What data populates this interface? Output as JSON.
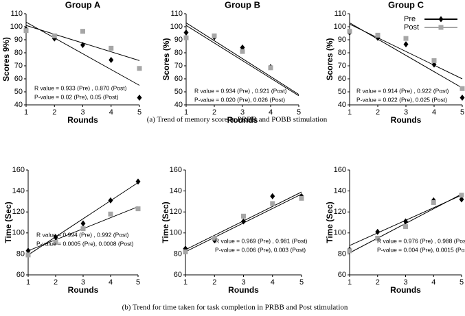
{
  "captions": [
    "(a)   Trend of memory score in PRBB and POBB stimulation",
    "(b)   Trend for time taken for task completion in PRBB and Post stimulation"
  ],
  "chart_data": [
    {
      "type": "scatter",
      "title": "Group A",
      "xlabel": "Rounds",
      "ylabel": "Scores 9%)",
      "x": [
        1,
        2,
        3,
        4,
        5
      ],
      "xlim": [
        1,
        5
      ],
      "xticks": [
        1,
        2,
        3,
        4,
        5
      ],
      "ylim": [
        40,
        110
      ],
      "yticks": [
        40,
        50,
        60,
        70,
        80,
        90,
        100,
        110
      ],
      "annotations": [
        "R value = 0.933 (Pre) , 0.870 (Post)",
        "P-value = 0.02 (Pre), 0.05    (Post)"
      ],
      "series": [
        {
          "name": "Pre",
          "color": "#000000",
          "marker": "diamond",
          "values": [
            98,
            91,
            86,
            74.5,
            45.5
          ],
          "trend": [
            103.5,
            55
          ]
        },
        {
          "name": "Post",
          "color": "#a6a6a6",
          "marker": "square",
          "values": [
            97,
            93,
            96.5,
            83.5,
            68
          ],
          "trend": [
            101,
            74
          ]
        }
      ]
    },
    {
      "type": "scatter",
      "title": "Group B",
      "xlabel": "Rounds",
      "ylabel": "Scores (%)",
      "x": [
        1,
        2,
        3,
        4,
        5
      ],
      "xlim": [
        1,
        5
      ],
      "xticks": [
        1,
        2,
        3,
        4,
        5
      ],
      "ylim": [
        40,
        110
      ],
      "yticks": [
        40,
        50,
        60,
        70,
        80,
        90,
        100,
        110
      ],
      "annotations": [
        "R value = 0.934 (Pre) , 0.921 (Post)",
        "P-value = 0.020 (Pre), 0.026 (Post)"
      ],
      "series": [
        {
          "name": "Pre",
          "color": "#000000",
          "marker": "diamond",
          "values": [
            95.5,
            92,
            84,
            69,
            null
          ],
          "trend": [
            103,
            48
          ]
        },
        {
          "name": "Post",
          "color": "#a6a6a6",
          "marker": "square",
          "values": [
            91.5,
            93,
            81,
            68.5,
            null
          ],
          "trend": [
            101,
            47
          ]
        }
      ]
    },
    {
      "type": "scatter",
      "title": "Group C",
      "xlabel": "Rounds",
      "ylabel": "Scores (%)",
      "legend": "upper right",
      "x": [
        1,
        2,
        3,
        4,
        5
      ],
      "xlim": [
        1,
        5
      ],
      "xticks": [
        1,
        2,
        3,
        4,
        5
      ],
      "ylim": [
        40,
        110
      ],
      "yticks": [
        40,
        50,
        60,
        70,
        80,
        90,
        100,
        110
      ],
      "annotations": [
        "R value = 0.914 (Pre) , 0.922 (Post)",
        "P-value = 0.022 (Pre), 0.025  (Post)"
      ],
      "series": [
        {
          "name": "Pre",
          "color": "#000000",
          "marker": "diamond",
          "values": [
            95.5,
            91.5,
            86.5,
            71,
            45.5
          ],
          "trend": [
            103,
            53
          ]
        },
        {
          "name": "Post",
          "color": "#a6a6a6",
          "marker": "square",
          "values": [
            96.5,
            93.5,
            91,
            74,
            52.5
          ],
          "trend": [
            102,
            60
          ]
        }
      ]
    },
    {
      "type": "scatter",
      "xlabel": "Rounds",
      "ylabel": "Time (Sec)",
      "x": [
        1,
        2,
        3,
        4,
        5
      ],
      "xlim": [
        1,
        5
      ],
      "xticks": [
        1,
        2,
        3,
        4,
        5
      ],
      "ylim": [
        60,
        160
      ],
      "yticks": [
        60,
        80,
        100,
        120,
        140,
        160
      ],
      "annotations": [
        "R value = 0.994 (Pre) , 0.992 (Post)",
        "P-value = 0.0005 (Pre), 0.0008 (Post)"
      ],
      "series": [
        {
          "name": "Pre",
          "color": "#000000",
          "marker": "diamond",
          "values": [
            83,
            96,
            109,
            131,
            149
          ],
          "trend": [
            79,
            148
          ]
        },
        {
          "name": "Post",
          "color": "#a6a6a6",
          "marker": "square",
          "values": [
            79,
            91,
            104,
            118,
            123
          ],
          "trend": [
            83,
            125
          ]
        }
      ]
    },
    {
      "type": "scatter",
      "xlabel": "Rounds",
      "ylabel": "Time (Sec)",
      "x": [
        1,
        2,
        3,
        4,
        5
      ],
      "xlim": [
        1,
        5
      ],
      "xticks": [
        1,
        2,
        3,
        4,
        5
      ],
      "ylim": [
        60,
        160
      ],
      "yticks": [
        60,
        80,
        100,
        120,
        140,
        160
      ],
      "annotations": [
        "R value = 0.969 (Pre) , 0.981 (Post)",
        "P-value = 0.006 (Pre), 0.003    (Post)"
      ],
      "series": [
        {
          "name": "Pre",
          "color": "#000000",
          "marker": "diamond",
          "values": [
            85,
            93,
            111,
            135,
            135
          ],
          "trend": [
            84,
            139
          ]
        },
        {
          "name": "Post",
          "color": "#a6a6a6",
          "marker": "square",
          "values": [
            82,
            95,
            116,
            128,
            133
          ],
          "trend": [
            82,
            137
          ]
        }
      ]
    },
    {
      "type": "scatter",
      "xlabel": "Rounds",
      "ylabel": "Time (Sec)",
      "x": [
        1,
        2,
        3,
        4,
        5
      ],
      "xlim": [
        1,
        5
      ],
      "xticks": [
        1,
        2,
        3,
        4,
        5
      ],
      "ylim": [
        60,
        160
      ],
      "yticks": [
        60,
        80,
        100,
        120,
        140,
        160
      ],
      "annotations": [
        "R value = 0.976 (Pre) , 0.988 (Post)",
        "P-value = 0.004 (Pre), 0.0015 (Post)"
      ],
      "series": [
        {
          "name": "Pre",
          "color": "#000000",
          "marker": "diamond",
          "values": [
            84,
            101,
            111,
            131,
            132
          ],
          "trend": [
            88,
            136
          ]
        },
        {
          "name": "Post",
          "color": "#a6a6a6",
          "marker": "square",
          "values": [
            83,
            95,
            106,
            129,
            136
          ],
          "trend": [
            81,
            137
          ]
        }
      ]
    }
  ]
}
